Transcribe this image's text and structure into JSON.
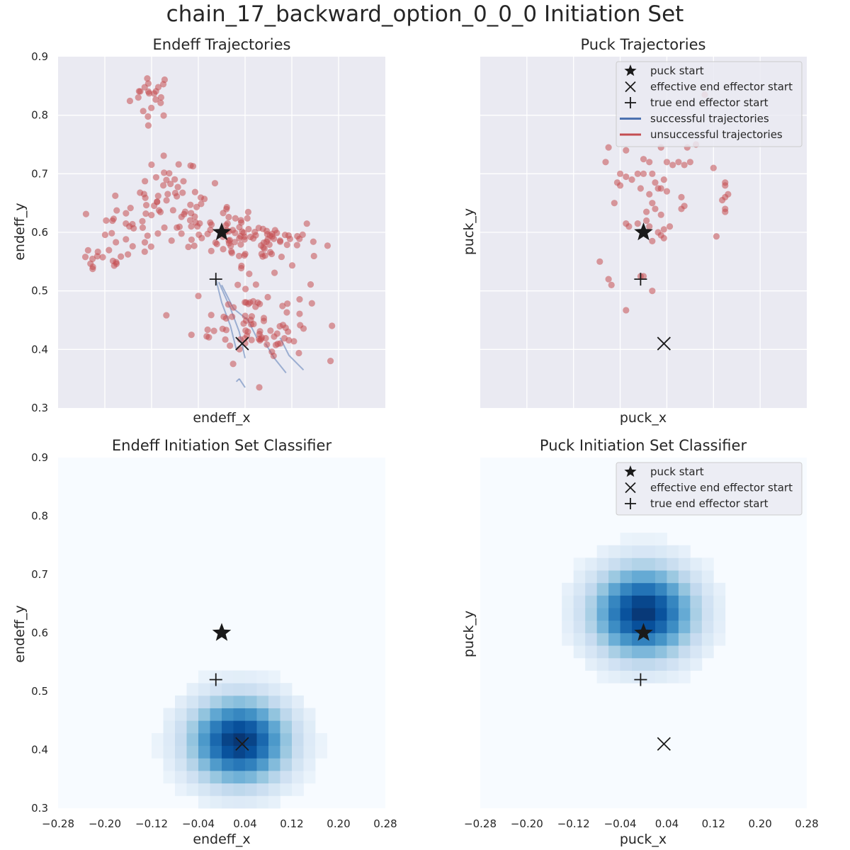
{
  "suptitle": "chain_17_backward_option_0_0_0 Initiation Set",
  "colors": {
    "axes_bg": "#eaeaf2",
    "grid": "#ffffff",
    "marker": "#1a1a1a",
    "scatter": "#c44e52",
    "success_line": "#4c72b0",
    "unsuccess_line": "#c44e52",
    "heatmap_low": "#f7fbff",
    "heatmap_high": "#08306b"
  },
  "legend": {
    "puck_start": "puck start",
    "effective_start": "effective end effector start",
    "true_start": "true end effector start",
    "successful": "successful trajectories",
    "unsuccessful": "unsuccessful trajectories"
  },
  "chart_data": [
    {
      "id": "endeff_traj",
      "type": "scatter",
      "title": "Endeff Trajectories",
      "xlabel": "endeff_x",
      "ylabel": "endeff_y",
      "xlim": [
        -0.28,
        0.28
      ],
      "ylim": [
        0.3,
        0.9
      ],
      "show_xticks": false,
      "yticks": [
        "0.3",
        "0.4",
        "0.5",
        "0.6",
        "0.7",
        "0.8",
        "0.9"
      ],
      "grid": true,
      "markers": {
        "puck_start": [
          0.0,
          0.6
        ],
        "effective_start": [
          0.035,
          0.41
        ],
        "true_start": [
          -0.01,
          0.52
        ]
      },
      "success_lines": [
        [
          [
            -0.01,
            0.52
          ],
          [
            0.0,
            0.48
          ],
          [
            0.015,
            0.44
          ],
          [
            0.025,
            0.4
          ]
        ],
        [
          [
            -0.005,
            0.515
          ],
          [
            0.015,
            0.47
          ],
          [
            0.03,
            0.43
          ],
          [
            0.04,
            0.385
          ]
        ],
        [
          [
            0.0,
            0.51
          ],
          [
            0.02,
            0.47
          ],
          [
            0.045,
            0.45
          ],
          [
            0.06,
            0.42
          ]
        ],
        [
          [
            0.075,
            0.41
          ],
          [
            0.09,
            0.385
          ],
          [
            0.11,
            0.36
          ]
        ],
        [
          [
            0.1,
            0.42
          ],
          [
            0.115,
            0.39
          ],
          [
            0.14,
            0.365
          ]
        ],
        [
          [
            0.025,
            0.345
          ],
          [
            0.03,
            0.35
          ]
        ],
        [
          [
            0.03,
            0.35
          ],
          [
            0.04,
            0.335
          ]
        ]
      ],
      "clusters": [
        {
          "center": [
            -0.12,
            0.835
          ],
          "spread": [
            0.018,
            0.02
          ],
          "n": 22
        },
        {
          "center": [
            -0.09,
            0.67
          ],
          "spread": [
            0.025,
            0.03
          ],
          "n": 30
        },
        {
          "center": [
            -0.16,
            0.6
          ],
          "spread": [
            0.035,
            0.025
          ],
          "n": 30
        },
        {
          "center": [
            -0.21,
            0.55
          ],
          "spread": [
            0.025,
            0.01
          ],
          "n": 14
        },
        {
          "center": [
            0.0,
            0.605
          ],
          "spread": [
            0.03,
            0.02
          ],
          "n": 40
        },
        {
          "center": [
            0.08,
            0.585
          ],
          "spread": [
            0.045,
            0.02
          ],
          "n": 55
        },
        {
          "center": [
            0.05,
            0.45
          ],
          "spread": [
            0.05,
            0.035
          ],
          "n": 65
        },
        {
          "center": [
            0.09,
            0.42
          ],
          "spread": [
            0.025,
            0.025
          ],
          "n": 20
        },
        {
          "center": [
            -0.04,
            0.64
          ],
          "spread": [
            0.03,
            0.02
          ],
          "n": 20
        }
      ]
    },
    {
      "id": "puck_traj",
      "type": "scatter",
      "title": "Puck Trajectories",
      "xlabel": "puck_x",
      "ylabel": "puck_y",
      "xlim": [
        -0.28,
        0.28
      ],
      "ylim": [
        0.3,
        0.9
      ],
      "show_xticks": false,
      "show_yticks": false,
      "grid": true,
      "legend_position": "upper-right",
      "markers": {
        "puck_start": [
          0.0,
          0.6
        ],
        "effective_start": [
          0.035,
          0.41
        ],
        "true_start": [
          -0.005,
          0.52
        ]
      },
      "points": [
        [
          -0.03,
          0.74
        ],
        [
          -0.06,
          0.745
        ],
        [
          -0.065,
          0.72
        ],
        [
          0.0,
          0.725
        ],
        [
          0.01,
          0.72
        ],
        [
          0.03,
          0.745
        ],
        [
          0.04,
          0.72
        ],
        [
          0.05,
          0.715
        ],
        [
          0.06,
          0.72
        ],
        [
          0.07,
          0.715
        ],
        [
          0.075,
          0.745
        ],
        [
          0.08,
          0.72
        ],
        [
          0.09,
          0.75
        ],
        [
          0.105,
          0.835
        ],
        [
          -0.04,
          0.7
        ],
        [
          -0.03,
          0.695
        ],
        [
          -0.02,
          0.69
        ],
        [
          -0.01,
          0.7
        ],
        [
          0.015,
          0.7
        ],
        [
          0.02,
          0.685
        ],
        [
          0.025,
          0.675
        ],
        [
          0.03,
          0.675
        ],
        [
          0.035,
          0.69
        ],
        [
          0.04,
          0.67
        ],
        [
          0.01,
          0.665
        ],
        [
          -0.005,
          0.675
        ],
        [
          0.0,
          0.7
        ],
        [
          -0.045,
          0.685
        ],
        [
          -0.04,
          0.68
        ],
        [
          -0.05,
          0.65
        ],
        [
          0.065,
          0.66
        ],
        [
          0.07,
          0.645
        ],
        [
          0.065,
          0.64
        ],
        [
          0.015,
          0.65
        ],
        [
          0.02,
          0.64
        ],
        [
          0.005,
          0.635
        ],
        [
          0.03,
          0.63
        ],
        [
          -0.01,
          0.615
        ],
        [
          0.005,
          0.62
        ],
        [
          0.01,
          0.61
        ],
        [
          0.045,
          0.61
        ],
        [
          0.035,
          0.605
        ],
        [
          0.03,
          0.595
        ],
        [
          0.035,
          0.59
        ],
        [
          0.025,
          0.6
        ],
        [
          -0.03,
          0.615
        ],
        [
          -0.025,
          0.61
        ],
        [
          0.015,
          0.585
        ],
        [
          -0.075,
          0.55
        ],
        [
          -0.06,
          0.52
        ],
        [
          -0.055,
          0.51
        ],
        [
          -0.005,
          0.525
        ],
        [
          0.0,
          0.525
        ],
        [
          0.015,
          0.5
        ],
        [
          -0.03,
          0.467
        ],
        [
          0.12,
          0.71
        ],
        [
          0.14,
          0.685
        ],
        [
          0.14,
          0.68
        ],
        [
          0.145,
          0.665
        ],
        [
          0.14,
          0.66
        ],
        [
          0.14,
          0.635
        ],
        [
          0.135,
          0.655
        ],
        [
          0.125,
          0.593
        ],
        [
          0.14,
          0.64
        ]
      ]
    },
    {
      "id": "endeff_classifier",
      "type": "heatmap",
      "title": "Endeff Initiation Set Classifier",
      "xlabel": "endeff_x",
      "ylabel": "endeff_y",
      "xlim": [
        -0.28,
        0.28
      ],
      "ylim": [
        0.3,
        0.9
      ],
      "xticks": [
        "−0.28",
        "−0.20",
        "−0.12",
        "−0.04",
        "0.04",
        "0.12",
        "0.20",
        "0.28"
      ],
      "yticks": [
        "0.3",
        "0.4",
        "0.5",
        "0.6",
        "0.7",
        "0.8",
        "0.9"
      ],
      "grid": false,
      "peak": [
        0.03,
        0.415
      ],
      "sigma": [
        0.06,
        0.052
      ],
      "markers": {
        "puck_start": [
          0.0,
          0.6
        ],
        "effective_start": [
          0.035,
          0.41
        ],
        "true_start": [
          -0.01,
          0.52
        ]
      }
    },
    {
      "id": "puck_classifier",
      "type": "heatmap",
      "title": "Puck Initiation Set Classifier",
      "xlabel": "puck_x",
      "ylabel": "puck_y",
      "xlim": [
        -0.28,
        0.28
      ],
      "ylim": [
        0.3,
        0.9
      ],
      "xticks": [
        "−0.28",
        "−0.20",
        "−0.12",
        "−0.04",
        "0.04",
        "0.12",
        "0.20",
        "0.28"
      ],
      "show_yticks": false,
      "grid": false,
      "legend_position": "upper-right",
      "peak": [
        0.0,
        0.635
      ],
      "sigma": [
        0.062,
        0.055
      ],
      "markers": {
        "puck_start": [
          0.0,
          0.6
        ],
        "effective_start": [
          0.035,
          0.41
        ],
        "true_start": [
          -0.005,
          0.52
        ]
      }
    }
  ]
}
